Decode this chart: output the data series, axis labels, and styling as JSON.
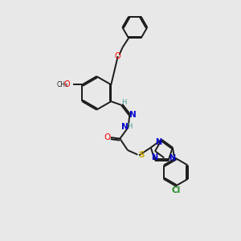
{
  "background_color": "#e8e8e8",
  "bond_color": "#1a1a1a",
  "atom_colors": {
    "O": "#ff0000",
    "N": "#0000cd",
    "S": "#ccaa00",
    "Cl": "#228b22",
    "H": "#4a9a9a",
    "C": "#1a1a1a"
  },
  "figsize": [
    3.0,
    3.0
  ],
  "dpi": 100
}
